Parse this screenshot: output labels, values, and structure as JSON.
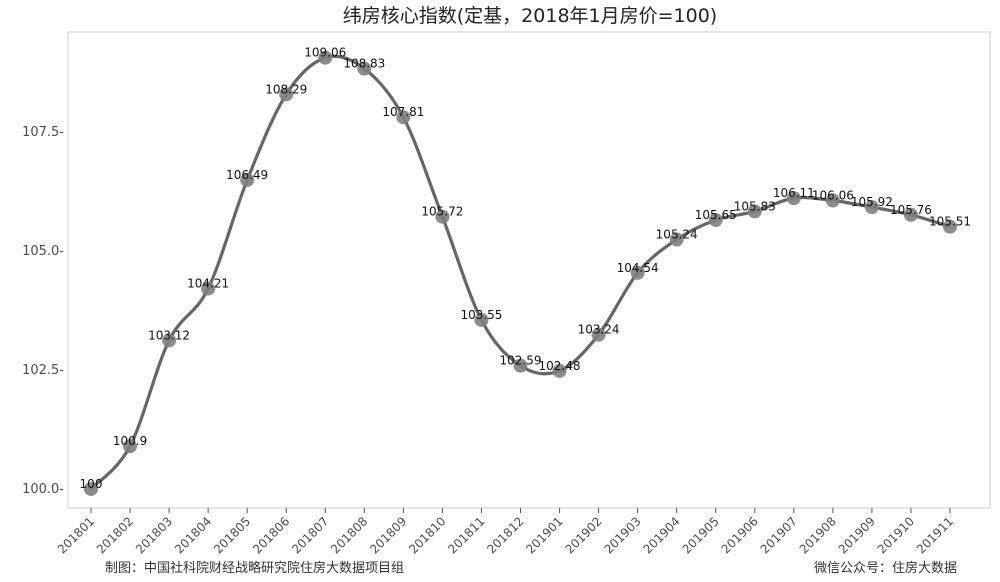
{
  "chart_data": {
    "type": "line",
    "title": "纬房核心指数(定基，2018年1月房价=100)",
    "xlabel": "",
    "ylabel": "",
    "categories": [
      "201801",
      "201802",
      "201803",
      "201804",
      "201805",
      "201806",
      "201807",
      "201808",
      "201809",
      "201810",
      "201811",
      "201812",
      "201901",
      "201902",
      "201903",
      "201904",
      "201905",
      "201906",
      "201907",
      "201908",
      "201909",
      "201910",
      "201911"
    ],
    "values": [
      100,
      100.9,
      103.12,
      104.21,
      106.49,
      108.29,
      109.06,
      108.83,
      107.81,
      105.72,
      103.55,
      102.59,
      102.48,
      103.24,
      104.54,
      105.24,
      105.65,
      105.83,
      106.11,
      106.06,
      105.92,
      105.76,
      105.51
    ],
    "data_labels": [
      "100",
      "100.9",
      "103.12",
      "104.21",
      "106.49",
      "108.29",
      "109.06",
      "108.83",
      "107.81",
      "105.72",
      "103.55",
      "102.59",
      "102.48",
      "103.24",
      "104.54",
      "105.24",
      "105.65",
      "105.83",
      "106.11",
      "106.06",
      "105.92",
      "105.76",
      "105.51"
    ],
    "ylim": [
      99.6,
      109.6
    ],
    "yticks": [
      100.0,
      102.5,
      105.0,
      107.5
    ],
    "ytick_labels": [
      "100.0-",
      "102.5-",
      "105.0-",
      "107.5-"
    ],
    "grid": false,
    "line_color": "#666666",
    "point_color": "#7f7f7f",
    "footer_left": "制图：中国社科院财经战略研究院住房大数据项目组",
    "footer_right": "微信公众号：住房大数据"
  }
}
